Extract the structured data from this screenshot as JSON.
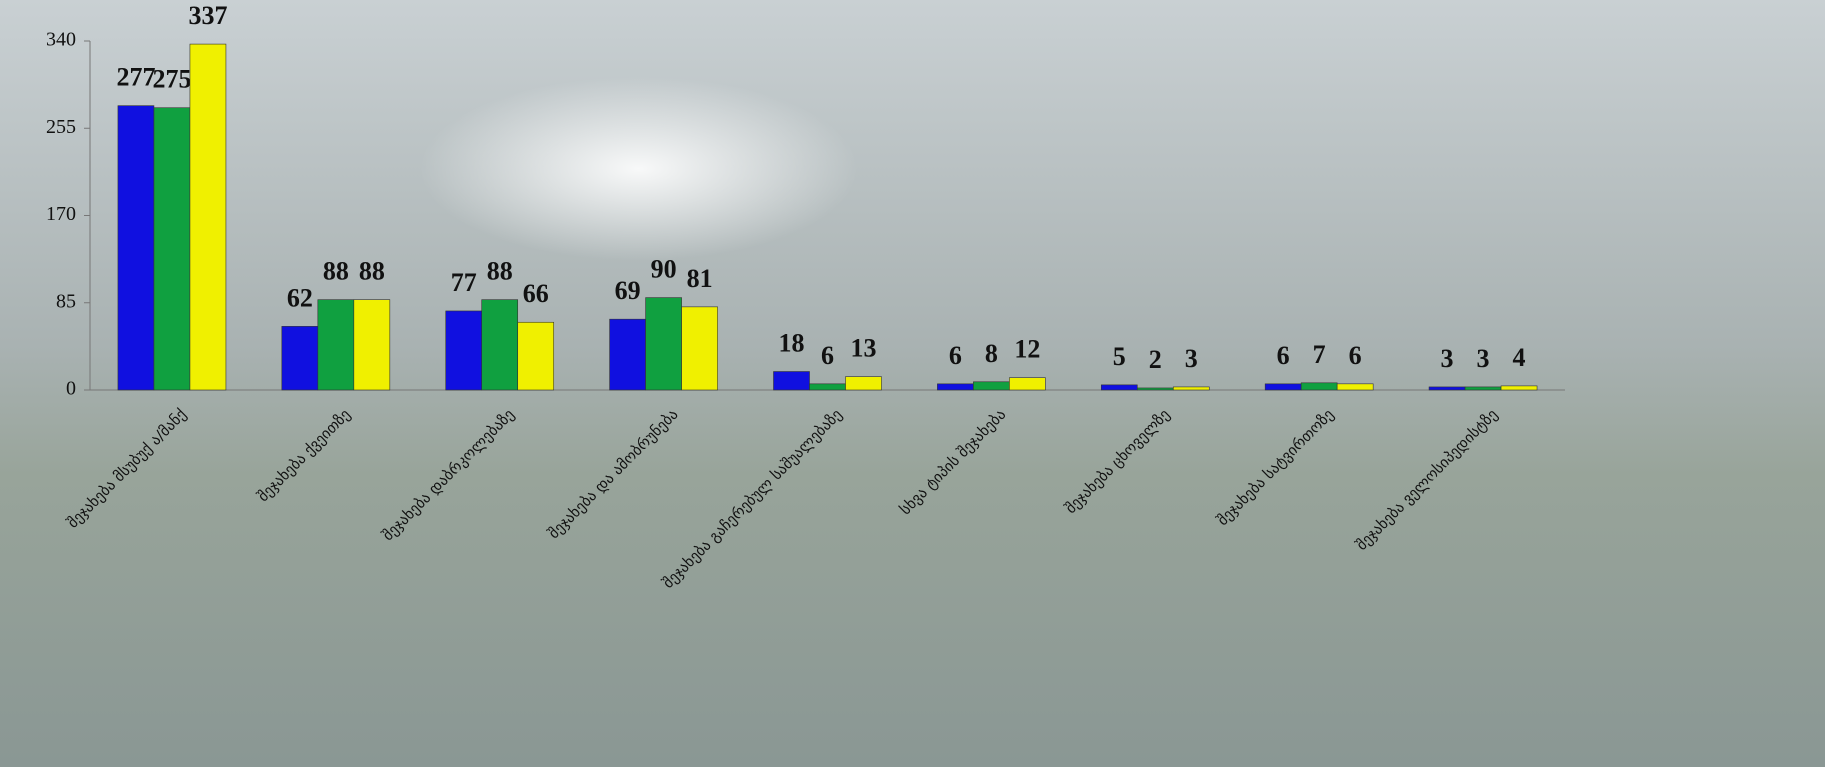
{
  "chart_data": {
    "type": "bar",
    "categories": [
      "შეჯახება მსუბუქ ა/მანქ",
      "შეჯახება ქვეითზე",
      "შეჯახება დაბრკოლებაზე",
      "შეჯახება და ამობრუნება",
      "შეჯახება გაჩერებულ საშუალებაზე",
      "სხვა ტიპის შეჯახება",
      "შეჯახება ცხოველზე",
      "შეჯახება სატვირთოზე",
      "შეჯახება ველოსიპედისტზე"
    ],
    "series": [
      {
        "color": "#1010e0",
        "values": [
          277,
          62,
          77,
          69,
          18,
          6,
          5,
          6,
          3
        ]
      },
      {
        "color": "#10a040",
        "values": [
          275,
          88,
          88,
          90,
          6,
          8,
          2,
          7,
          3
        ]
      },
      {
        "color": "#f0f000",
        "values": [
          337,
          88,
          66,
          81,
          13,
          12,
          3,
          6,
          4
        ]
      }
    ],
    "ylim": [
      0,
      340
    ],
    "yticks": [
      0,
      85,
      170,
      255,
      340
    ]
  }
}
